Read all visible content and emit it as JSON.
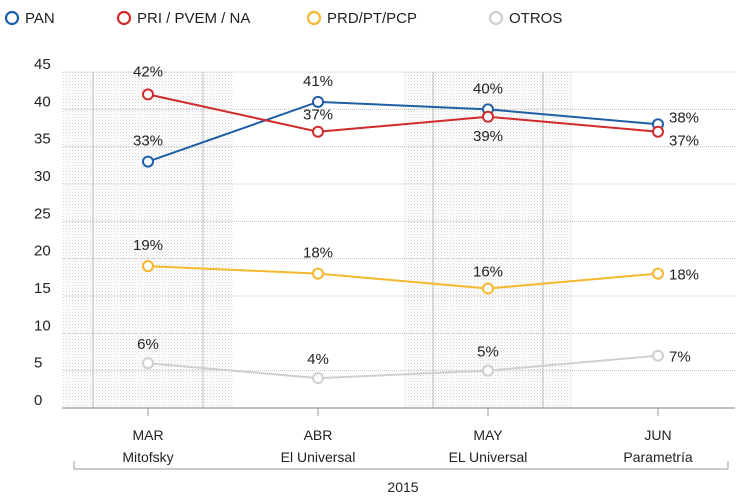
{
  "chart_data": {
    "type": "line",
    "categories": [
      {
        "label": "MAR",
        "source": "Mitofsky"
      },
      {
        "label": "ABR",
        "source": "El Universal"
      },
      {
        "label": "MAY",
        "source": "EL Universal"
      },
      {
        "label": "JUN",
        "source": "Parametría"
      }
    ],
    "year_label": "2015",
    "ylim": [
      0,
      45
    ],
    "yticks": [
      0,
      5,
      10,
      15,
      20,
      25,
      30,
      35,
      40,
      45
    ],
    "grid": true,
    "legend_position": "top",
    "series": [
      {
        "name": "PAN",
        "color": "#1f5fa6",
        "values": [
          33,
          41,
          40,
          38
        ],
        "labels": [
          "33%",
          "41%",
          "40%",
          "38%"
        ]
      },
      {
        "name": "PRI / PVEM / NA",
        "color": "#d02a2a",
        "values": [
          42,
          37,
          39,
          37
        ],
        "labels": [
          "42%",
          "37%",
          "39%",
          "37%"
        ]
      },
      {
        "name": "PRD/PT/PCP",
        "color": "#f5b82e",
        "values": [
          19,
          18,
          16,
          18
        ],
        "labels": [
          "19%",
          "18%",
          "16%",
          "18%"
        ]
      },
      {
        "name": "OTROS",
        "color": "#cfcfcf",
        "values": [
          6,
          4,
          5,
          7
        ],
        "labels": [
          "6%",
          "4%",
          "5%",
          "7%"
        ]
      }
    ]
  }
}
